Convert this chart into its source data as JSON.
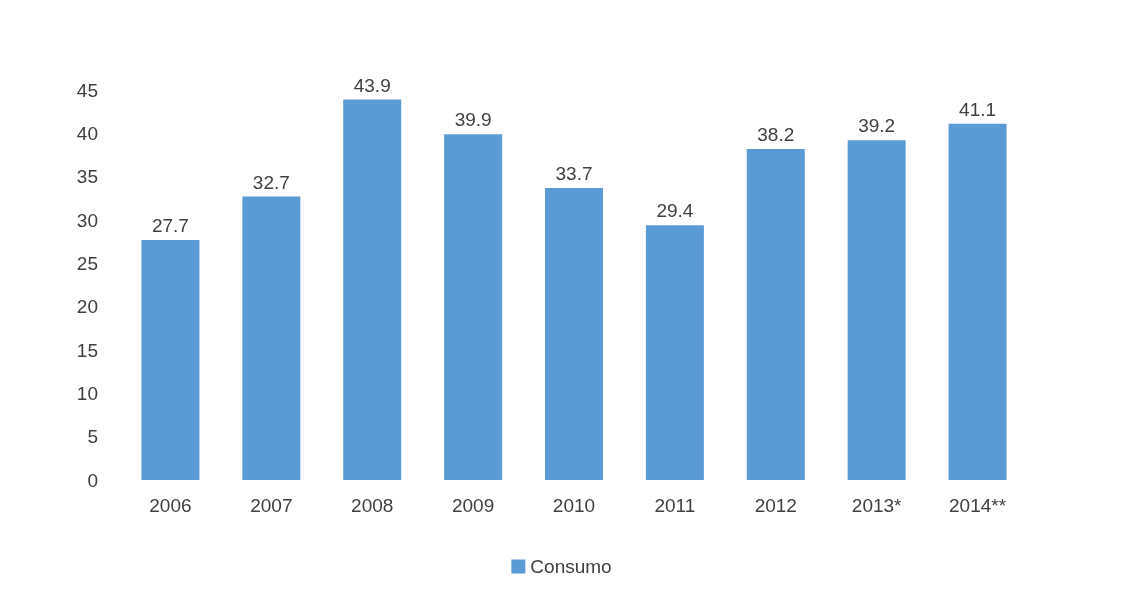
{
  "chart_data": {
    "type": "bar",
    "categories": [
      "2006",
      "2007",
      "2008",
      "2009",
      "2010",
      "2011",
      "2012",
      "2013*",
      "2014**"
    ],
    "series": [
      {
        "name": "Consumo",
        "color": "#5b9bd5",
        "values": [
          27.7,
          32.7,
          43.9,
          39.9,
          33.7,
          29.4,
          38.2,
          39.2,
          41.1
        ]
      }
    ],
    "ylim": [
      0,
      45
    ],
    "yticks": [
      0,
      5,
      10,
      15,
      20,
      25,
      30,
      35,
      40,
      45
    ],
    "grid": false,
    "legend": "bottom",
    "data_labels": true
  }
}
